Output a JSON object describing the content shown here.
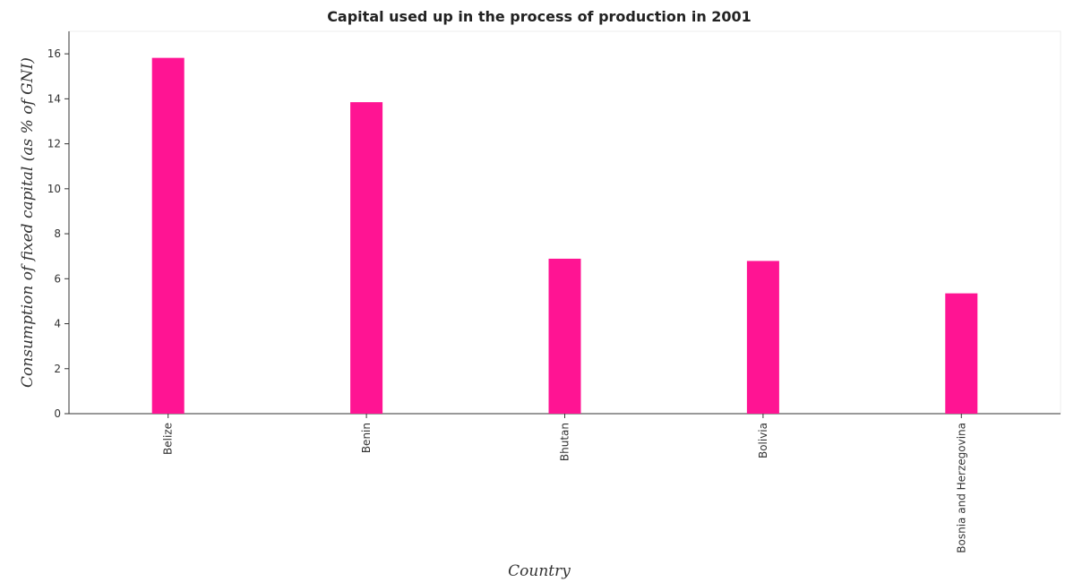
{
  "chart_data": {
    "type": "bar",
    "title": "Capital used up in the process of production in 2001",
    "xlabel": "Country",
    "ylabel": "Consumption of fixed capital (as % of GNI)",
    "categories": [
      "Belize",
      "Benin",
      "Bhutan",
      "Bolivia",
      "Bosnia and Herzegovina"
    ],
    "values": [
      15.82,
      13.85,
      6.89,
      6.79,
      5.35
    ],
    "ylim": [
      0,
      17
    ],
    "yticks": [
      0,
      2,
      4,
      6,
      8,
      10,
      12,
      14,
      16
    ],
    "grid": false,
    "bar_color": "#ff1493"
  }
}
